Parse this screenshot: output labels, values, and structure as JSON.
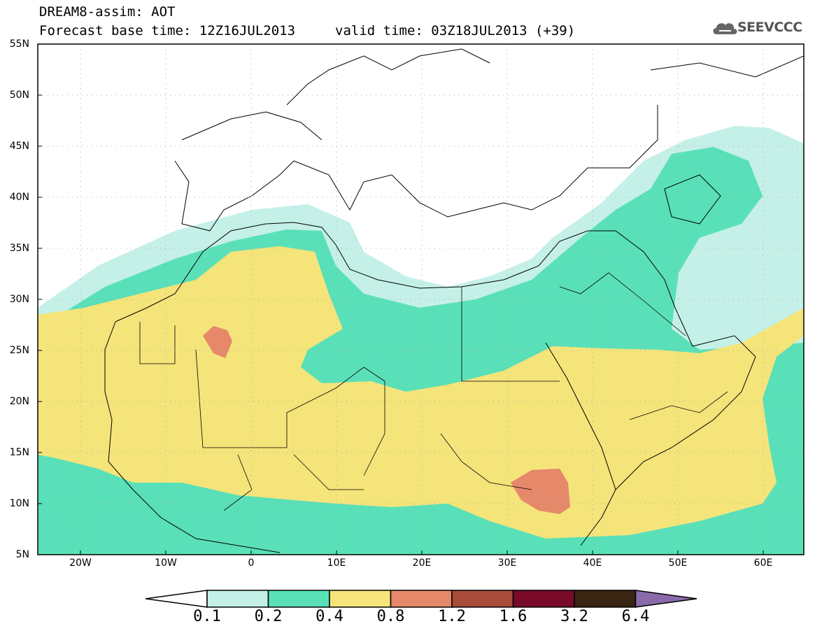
{
  "header": {
    "title_line1": "DREAM8-assim: AOT",
    "base_time": "Forecast base time: 12Z16JUL2013",
    "valid_time": "valid time: 03Z18JUL2013 (+39)",
    "logo_text": "SEEVCCC"
  },
  "map": {
    "lat_labels": [
      "55N",
      "50N",
      "45N",
      "40N",
      "35N",
      "30N",
      "25N",
      "20N",
      "15N",
      "10N",
      "5N"
    ],
    "lon_labels": [
      "20W",
      "10W",
      "0",
      "10E",
      "20E",
      "30E",
      "40E",
      "50E",
      "60E"
    ],
    "lon_range": [
      -25,
      65
    ],
    "lat_range": [
      5,
      55
    ],
    "grid": "dotted"
  },
  "colorbar": {
    "labels": [
      "0.1",
      "0.2",
      "0.4",
      "0.8",
      "1.2",
      "1.6",
      "3.2",
      "6.4"
    ],
    "colors": [
      "#ffffff",
      "#c4f0e8",
      "#5ae0b8",
      "#f5e47a",
      "#e6886a",
      "#a84b3a",
      "#7a0a2a",
      "#3a2412",
      "#8a6aaa"
    ]
  },
  "colors": {
    "c01": "#c4f0e8",
    "c02": "#5ae0b8",
    "c04": "#f5e47a",
    "c08": "#e6886a"
  }
}
